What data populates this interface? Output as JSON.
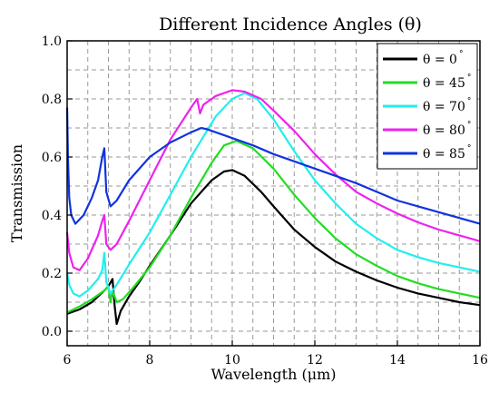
{
  "chart_data": {
    "type": "line",
    "title": "Different Incidence Angles (θ)",
    "xlabel": "Wavelength (μm)",
    "ylabel": "Transmission",
    "xlim": [
      6,
      16
    ],
    "ylim": [
      -0.05,
      1.0
    ],
    "x_ticks": [
      "6",
      "8",
      "10",
      "12",
      "14",
      "16"
    ],
    "y_ticks": [
      "0.0",
      "0.2",
      "0.4",
      "0.6",
      "0.8",
      "1.0"
    ],
    "x_tick_values": [
      6,
      8,
      10,
      12,
      14,
      16
    ],
    "y_tick_values": [
      0.0,
      0.2,
      0.4,
      0.6,
      0.8,
      1.0
    ],
    "x_grid": [
      6.5,
      7,
      7.5,
      8,
      8.5,
      9,
      9.5,
      10,
      10.5,
      11,
      11.5,
      12,
      12.5,
      13,
      13.5,
      14,
      14.5,
      15,
      15.5
    ],
    "y_grid": [
      0.0,
      0.1,
      0.2,
      0.3,
      0.4,
      0.5,
      0.6,
      0.7,
      0.8,
      0.9
    ],
    "grid": true,
    "legend_position": "top-right",
    "series": [
      {
        "name": "θ = 0",
        "degree": "°",
        "color": "#000000",
        "points": [
          [
            6,
            0.06
          ],
          [
            6.3,
            0.075
          ],
          [
            6.6,
            0.1
          ],
          [
            6.9,
            0.14
          ],
          [
            7.0,
            0.155
          ],
          [
            7.1,
            0.18
          ],
          [
            7.15,
            0.09
          ],
          [
            7.2,
            0.025
          ],
          [
            7.3,
            0.07
          ],
          [
            7.5,
            0.12
          ],
          [
            7.75,
            0.17
          ],
          [
            8,
            0.225
          ],
          [
            8.5,
            0.33
          ],
          [
            9,
            0.44
          ],
          [
            9.5,
            0.52
          ],
          [
            9.8,
            0.55
          ],
          [
            10,
            0.555
          ],
          [
            10.3,
            0.535
          ],
          [
            10.7,
            0.48
          ],
          [
            11,
            0.43
          ],
          [
            11.5,
            0.35
          ],
          [
            12,
            0.29
          ],
          [
            12.5,
            0.24
          ],
          [
            13,
            0.205
          ],
          [
            13.5,
            0.175
          ],
          [
            14,
            0.15
          ],
          [
            14.5,
            0.13
          ],
          [
            15,
            0.115
          ],
          [
            15.5,
            0.1
          ],
          [
            16,
            0.09
          ]
        ]
      },
      {
        "name": "θ = 45",
        "degree": "°",
        "color": "#22dd22",
        "points": [
          [
            6,
            0.065
          ],
          [
            6.3,
            0.085
          ],
          [
            6.6,
            0.11
          ],
          [
            6.9,
            0.14
          ],
          [
            7.0,
            0.155
          ],
          [
            7.05,
            0.1
          ],
          [
            7.1,
            0.14
          ],
          [
            7.2,
            0.1
          ],
          [
            7.35,
            0.11
          ],
          [
            7.6,
            0.15
          ],
          [
            8,
            0.22
          ],
          [
            8.5,
            0.33
          ],
          [
            9,
            0.46
          ],
          [
            9.5,
            0.58
          ],
          [
            9.8,
            0.64
          ],
          [
            10.1,
            0.655
          ],
          [
            10.5,
            0.63
          ],
          [
            11,
            0.56
          ],
          [
            11.5,
            0.47
          ],
          [
            12,
            0.39
          ],
          [
            12.5,
            0.32
          ],
          [
            13,
            0.265
          ],
          [
            13.5,
            0.225
          ],
          [
            14,
            0.19
          ],
          [
            14.5,
            0.165
          ],
          [
            15,
            0.145
          ],
          [
            15.5,
            0.13
          ],
          [
            16,
            0.115
          ]
        ]
      },
      {
        "name": "θ = 70",
        "degree": "°",
        "color": "#22eeee",
        "points": [
          [
            6,
            0.2
          ],
          [
            6.05,
            0.16
          ],
          [
            6.15,
            0.13
          ],
          [
            6.3,
            0.12
          ],
          [
            6.5,
            0.14
          ],
          [
            6.75,
            0.18
          ],
          [
            6.85,
            0.21
          ],
          [
            6.9,
            0.27
          ],
          [
            6.95,
            0.17
          ],
          [
            7.05,
            0.13
          ],
          [
            7.2,
            0.16
          ],
          [
            7.5,
            0.23
          ],
          [
            8,
            0.34
          ],
          [
            8.5,
            0.47
          ],
          [
            9,
            0.6
          ],
          [
            9.3,
            0.67
          ],
          [
            9.6,
            0.74
          ],
          [
            10,
            0.8
          ],
          [
            10.3,
            0.82
          ],
          [
            10.6,
            0.8
          ],
          [
            11,
            0.73
          ],
          [
            11.5,
            0.62
          ],
          [
            12,
            0.52
          ],
          [
            12.5,
            0.44
          ],
          [
            13,
            0.37
          ],
          [
            13.5,
            0.32
          ],
          [
            14,
            0.28
          ],
          [
            14.5,
            0.255
          ],
          [
            15,
            0.235
          ],
          [
            15.5,
            0.22
          ],
          [
            16,
            0.205
          ]
        ]
      },
      {
        "name": "θ = 80",
        "degree": "°",
        "color": "#ee22ee",
        "points": [
          [
            6,
            0.34
          ],
          [
            6.05,
            0.27
          ],
          [
            6.15,
            0.22
          ],
          [
            6.3,
            0.21
          ],
          [
            6.5,
            0.25
          ],
          [
            6.75,
            0.33
          ],
          [
            6.85,
            0.38
          ],
          [
            6.9,
            0.4
          ],
          [
            6.95,
            0.3
          ],
          [
            7.05,
            0.28
          ],
          [
            7.2,
            0.3
          ],
          [
            7.5,
            0.38
          ],
          [
            8,
            0.52
          ],
          [
            8.5,
            0.66
          ],
          [
            9,
            0.77
          ],
          [
            9.15,
            0.8
          ],
          [
            9.22,
            0.75
          ],
          [
            9.3,
            0.78
          ],
          [
            9.6,
            0.81
          ],
          [
            10,
            0.83
          ],
          [
            10.3,
            0.825
          ],
          [
            10.7,
            0.8
          ],
          [
            11,
            0.76
          ],
          [
            11.5,
            0.69
          ],
          [
            12,
            0.61
          ],
          [
            12.5,
            0.54
          ],
          [
            13,
            0.48
          ],
          [
            13.5,
            0.44
          ],
          [
            14,
            0.405
          ],
          [
            14.5,
            0.375
          ],
          [
            15,
            0.35
          ],
          [
            15.5,
            0.33
          ],
          [
            16,
            0.31
          ]
        ]
      },
      {
        "name": "θ = 85",
        "degree": "°",
        "color": "#1133dd",
        "points": [
          [
            6,
            0.77
          ],
          [
            6.02,
            0.6
          ],
          [
            6.05,
            0.46
          ],
          [
            6.1,
            0.4
          ],
          [
            6.2,
            0.37
          ],
          [
            6.4,
            0.4
          ],
          [
            6.6,
            0.46
          ],
          [
            6.75,
            0.52
          ],
          [
            6.85,
            0.6
          ],
          [
            6.9,
            0.63
          ],
          [
            6.95,
            0.48
          ],
          [
            7.05,
            0.43
          ],
          [
            7.2,
            0.45
          ],
          [
            7.5,
            0.52
          ],
          [
            8,
            0.6
          ],
          [
            8.5,
            0.65
          ],
          [
            9,
            0.685
          ],
          [
            9.25,
            0.7
          ],
          [
            9.4,
            0.695
          ],
          [
            10,
            0.665
          ],
          [
            10.5,
            0.64
          ],
          [
            11,
            0.61
          ],
          [
            11.5,
            0.585
          ],
          [
            12,
            0.56
          ],
          [
            12.5,
            0.535
          ],
          [
            13,
            0.51
          ],
          [
            13.5,
            0.48
          ],
          [
            14,
            0.45
          ],
          [
            14.5,
            0.43
          ],
          [
            15,
            0.41
          ],
          [
            15.5,
            0.39
          ],
          [
            16,
            0.37
          ]
        ]
      }
    ]
  }
}
